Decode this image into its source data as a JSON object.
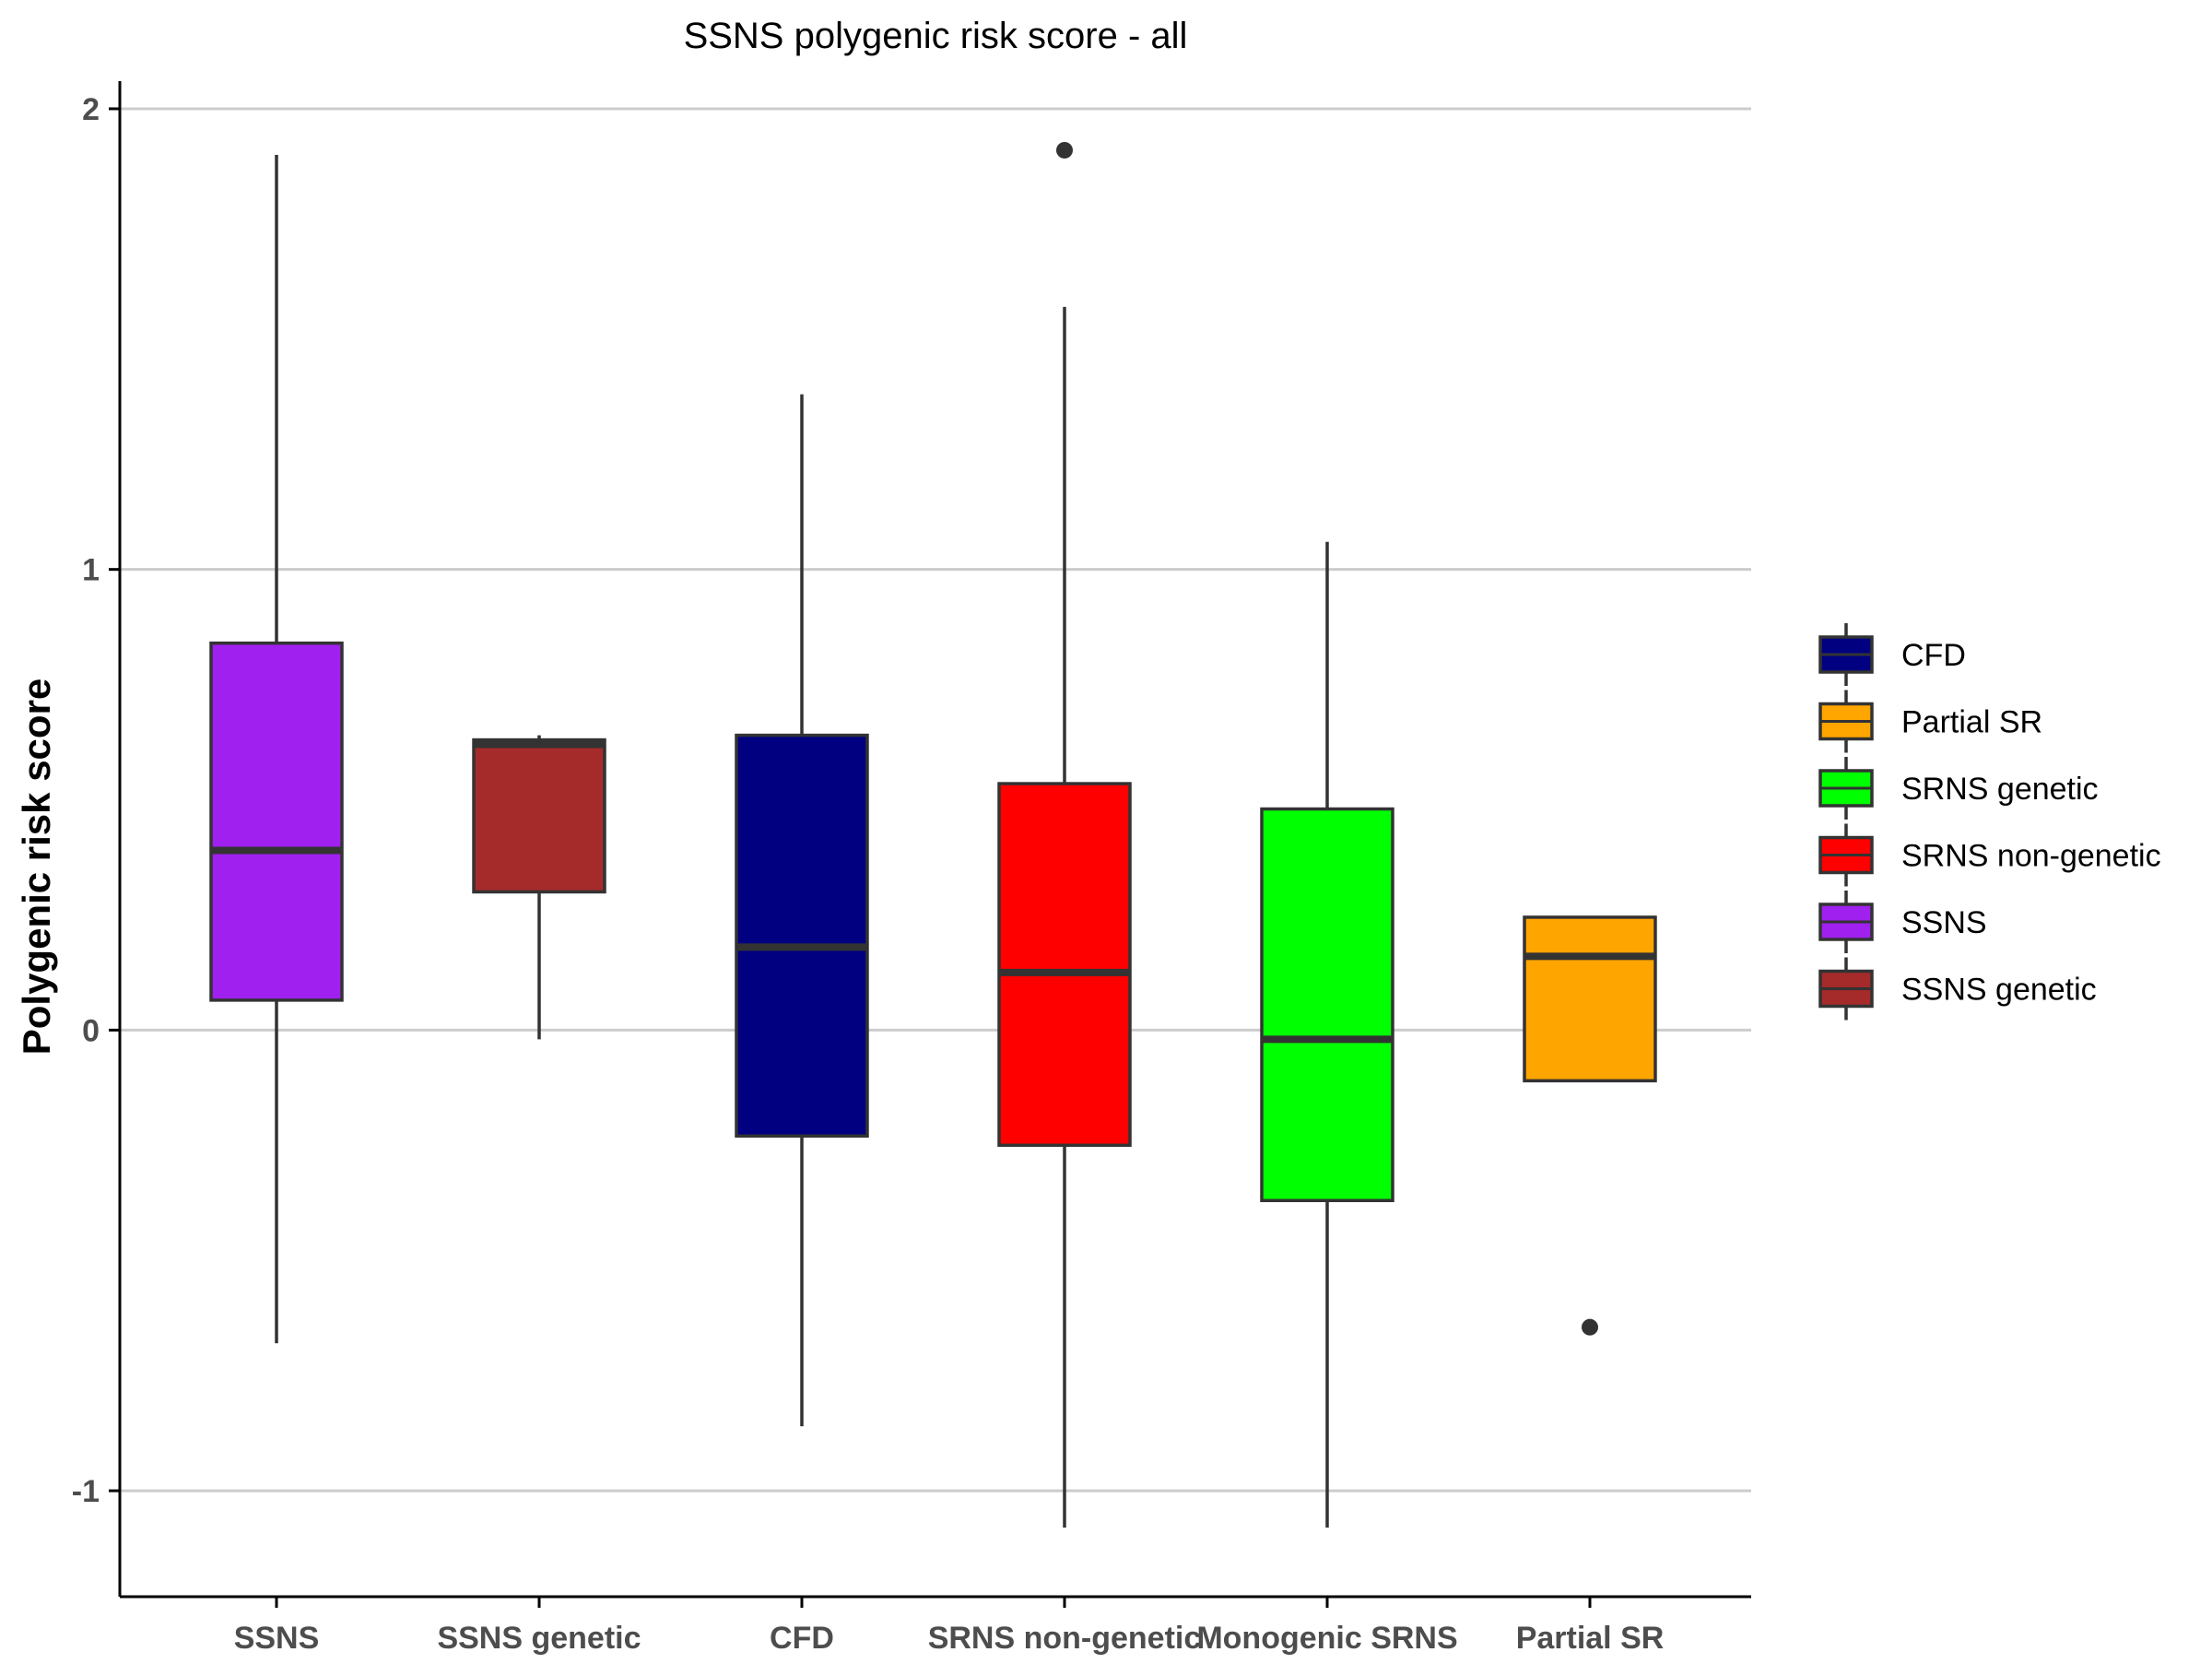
{
  "chart_data": {
    "type": "boxplot",
    "title": "SSNS polygenic risk score - all",
    "xlabel": "",
    "ylabel": "Polygenic risk score",
    "ylim": [
      -1.23,
      2.06
    ],
    "y_ticks": [
      2,
      1,
      0,
      -1
    ],
    "grid": "horizontal major",
    "legend_position": "right",
    "categories": [
      "SSNS",
      "SSNS genetic",
      "CFD",
      "SRNS non-genetic",
      "Monogenic SRNS",
      "Partial SR"
    ],
    "series": [
      {
        "category": "SSNS",
        "min": -0.68,
        "q1": 0.065,
        "median": 0.39,
        "q3": 0.84,
        "max": 1.9,
        "outliers": [],
        "color": "#A020F0"
      },
      {
        "category": "SSNS genetic",
        "min": -0.02,
        "q1": 0.3,
        "median": 0.62,
        "q3": 0.63,
        "max": 0.64,
        "outliers": [],
        "color": "#A52A2A"
      },
      {
        "category": "CFD",
        "min": -0.86,
        "q1": -0.23,
        "median": 0.18,
        "q3": 0.64,
        "max": 1.38,
        "outliers": [],
        "color": "#000080"
      },
      {
        "category": "SRNS non-genetic",
        "min": -1.08,
        "q1": -0.25,
        "median": 0.125,
        "q3": 0.535,
        "max": 1.57,
        "outliers": [
          1.91
        ],
        "color": "#FF0000"
      },
      {
        "category": "Monogenic SRNS",
        "min": -1.08,
        "q1": -0.37,
        "median": -0.02,
        "q3": 0.48,
        "max": 1.06,
        "outliers": [],
        "color": "#00FF00"
      },
      {
        "category": "Partial SR",
        "min": -0.11,
        "q1": -0.11,
        "median": 0.16,
        "q3": 0.245,
        "max": 0.245,
        "outliers": [
          -0.645
        ],
        "color": "#FFA500"
      }
    ],
    "legend": [
      {
        "label": "CFD",
        "color": "#000080"
      },
      {
        "label": "Partial SR",
        "color": "#FFA500"
      },
      {
        "label": "SRNS genetic",
        "color": "#00FF00"
      },
      {
        "label": "SRNS non-genetic",
        "color": "#FF0000"
      },
      {
        "label": "SSNS",
        "color": "#A020F0"
      },
      {
        "label": "SSNS genetic",
        "color": "#A52A2A"
      }
    ]
  }
}
